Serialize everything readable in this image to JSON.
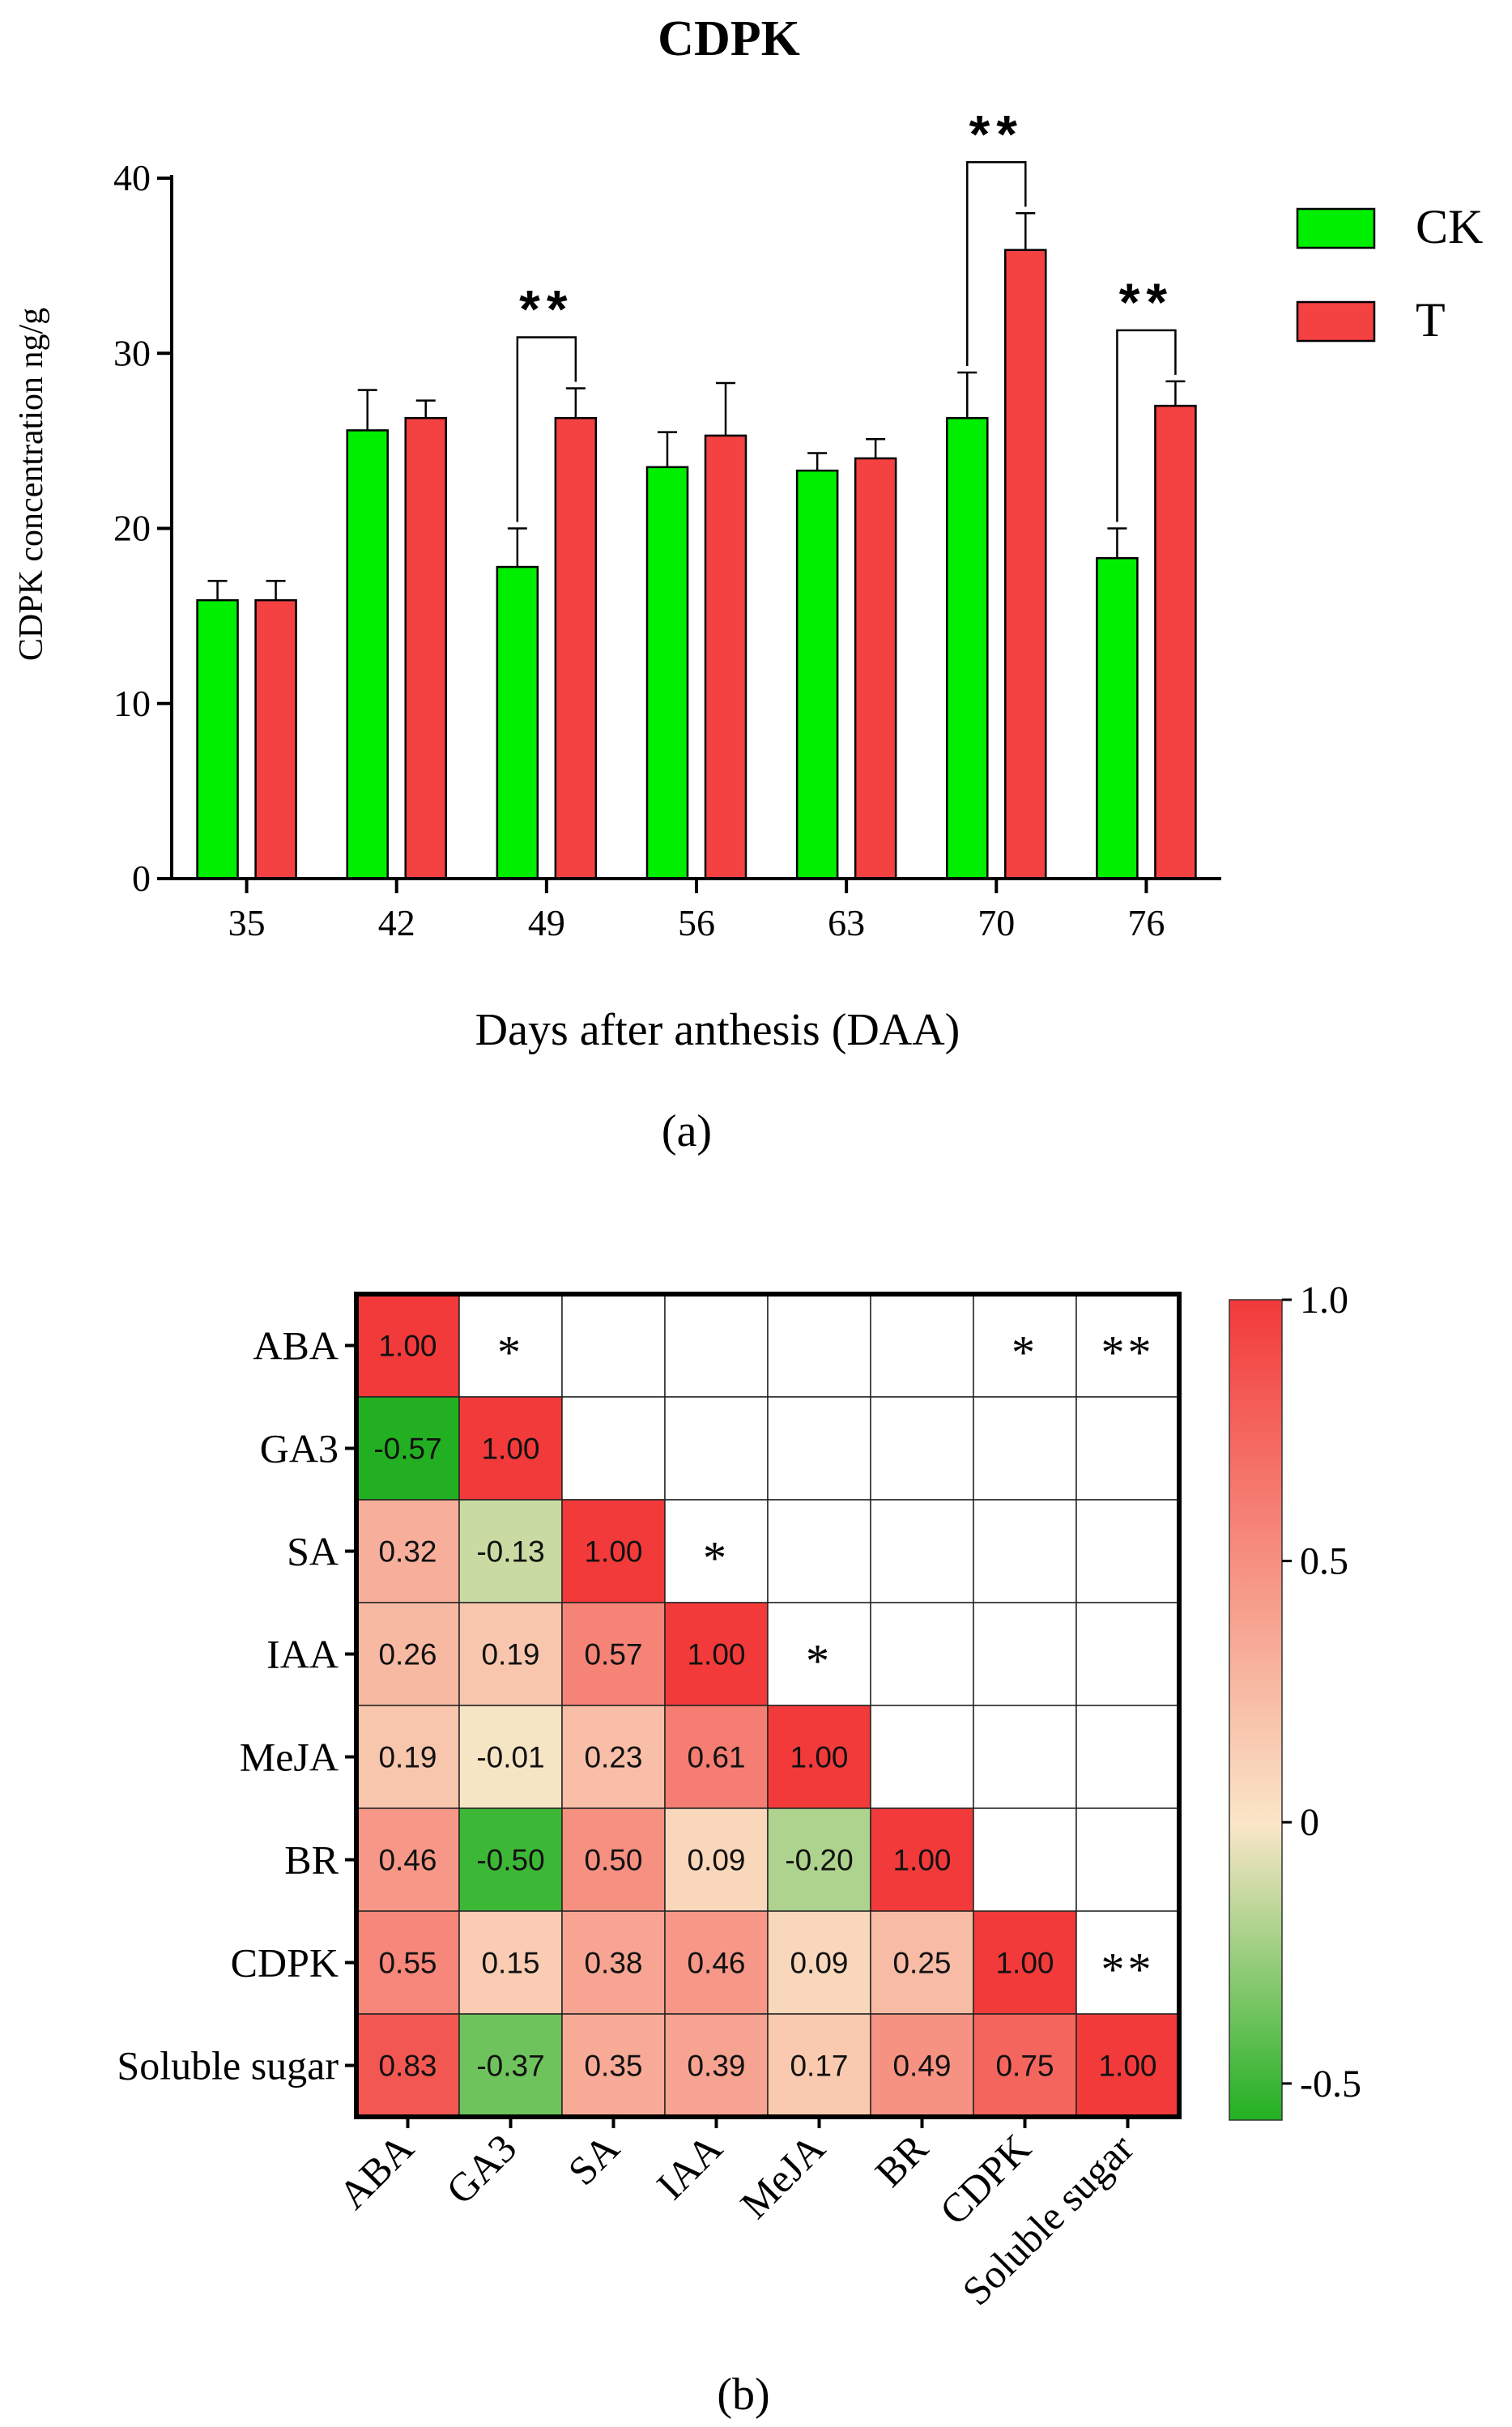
{
  "panel_a": {
    "chart_data": {
      "type": "bar",
      "title": "CDPK",
      "xlabel": "Days after anthesis (DAA)",
      "ylabel": "CDPK concentration ng/g",
      "ylim": [
        0,
        40
      ],
      "yticks": [
        0,
        10,
        20,
        30,
        40
      ],
      "categories": [
        "35",
        "42",
        "49",
        "56",
        "63",
        "70",
        "76"
      ],
      "series": [
        {
          "name": "CK",
          "color": "#00ee00",
          "values": [
            15.9,
            25.6,
            17.8,
            23.5,
            23.3,
            26.3,
            18.3
          ],
          "errors": [
            1.1,
            2.3,
            2.2,
            2.0,
            1.0,
            2.6,
            1.7
          ]
        },
        {
          "name": "T",
          "color": "#f44141",
          "values": [
            15.9,
            26.3,
            26.3,
            25.3,
            24.0,
            35.9,
            27.0
          ],
          "errors": [
            1.1,
            1.0,
            1.7,
            3.0,
            1.1,
            2.1,
            1.4
          ]
        }
      ],
      "significance": [
        {
          "category": "49",
          "label": "**"
        },
        {
          "category": "70",
          "label": "**"
        },
        {
          "category": "76",
          "label": "**"
        }
      ],
      "legend_position": "right"
    },
    "caption": "(a)"
  },
  "panel_b": {
    "chart_data": {
      "type": "heatmap",
      "rows": [
        "ABA",
        "GA3",
        "SA",
        "IAA",
        "MeJA",
        "BR",
        "CDPK",
        "Soluble sugar"
      ],
      "columns": [
        "ABA",
        "GA3",
        "SA",
        "IAA",
        "MeJA",
        "BR",
        "CDPK",
        "Soluble sugar"
      ],
      "values": [
        [
          1.0,
          null,
          null,
          null,
          null,
          null,
          null,
          null
        ],
        [
          -0.57,
          1.0,
          null,
          null,
          null,
          null,
          null,
          null
        ],
        [
          0.32,
          -0.13,
          1.0,
          null,
          null,
          null,
          null,
          null
        ],
        [
          0.26,
          0.19,
          0.57,
          1.0,
          null,
          null,
          null,
          null
        ],
        [
          0.19,
          -0.01,
          0.23,
          0.61,
          1.0,
          null,
          null,
          null
        ],
        [
          0.46,
          -0.5,
          0.5,
          0.09,
          -0.2,
          1.0,
          null,
          null
        ],
        [
          0.55,
          0.15,
          0.38,
          0.46,
          0.09,
          0.25,
          1.0,
          null
        ],
        [
          0.83,
          -0.37,
          0.35,
          0.39,
          0.17,
          0.49,
          0.75,
          1.0
        ]
      ],
      "value_labels": [
        [
          "1.00",
          "",
          "",
          "",
          "",
          "",
          "",
          ""
        ],
        [
          "-0.57",
          "1.00",
          "",
          "",
          "",
          "",
          "",
          ""
        ],
        [
          "0.32",
          "-0.13",
          "1.00",
          "",
          "",
          "",
          "",
          ""
        ],
        [
          "0.26",
          "0.19",
          "0.57",
          "1.00",
          "",
          "",
          "",
          ""
        ],
        [
          "0.19",
          "-0.01",
          "0.23",
          "0.61",
          "1.00",
          "",
          "",
          ""
        ],
        [
          "0.46",
          "-0.50",
          "0.50",
          "0.09",
          "-0.20",
          "1.00",
          "",
          ""
        ],
        [
          "0.55",
          "0.15",
          "0.38",
          "0.46",
          "0.09",
          "0.25",
          "1.00",
          ""
        ],
        [
          "0.83",
          "-0.37",
          "0.35",
          "0.39",
          "0.17",
          "0.49",
          "0.75",
          "1.00"
        ]
      ],
      "significance": [
        {
          "row": 0,
          "col": 1,
          "label": "*"
        },
        {
          "row": 0,
          "col": 6,
          "label": "*"
        },
        {
          "row": 0,
          "col": 7,
          "label": "**"
        },
        {
          "row": 2,
          "col": 3,
          "label": "*"
        },
        {
          "row": 3,
          "col": 4,
          "label": "*"
        },
        {
          "row": 6,
          "col": 7,
          "label": "**"
        }
      ],
      "colorbar": {
        "range": [
          -0.57,
          1.0
        ],
        "ticks": [
          -0.5,
          0,
          0.5,
          1.0
        ],
        "tick_labels": [
          "-0.5",
          "0",
          "0.5",
          "1.0"
        ],
        "colors": {
          "negative": "#22b022",
          "zero": "#fae6c8",
          "positive": "#f23a3a"
        }
      }
    },
    "caption": "(b)"
  }
}
